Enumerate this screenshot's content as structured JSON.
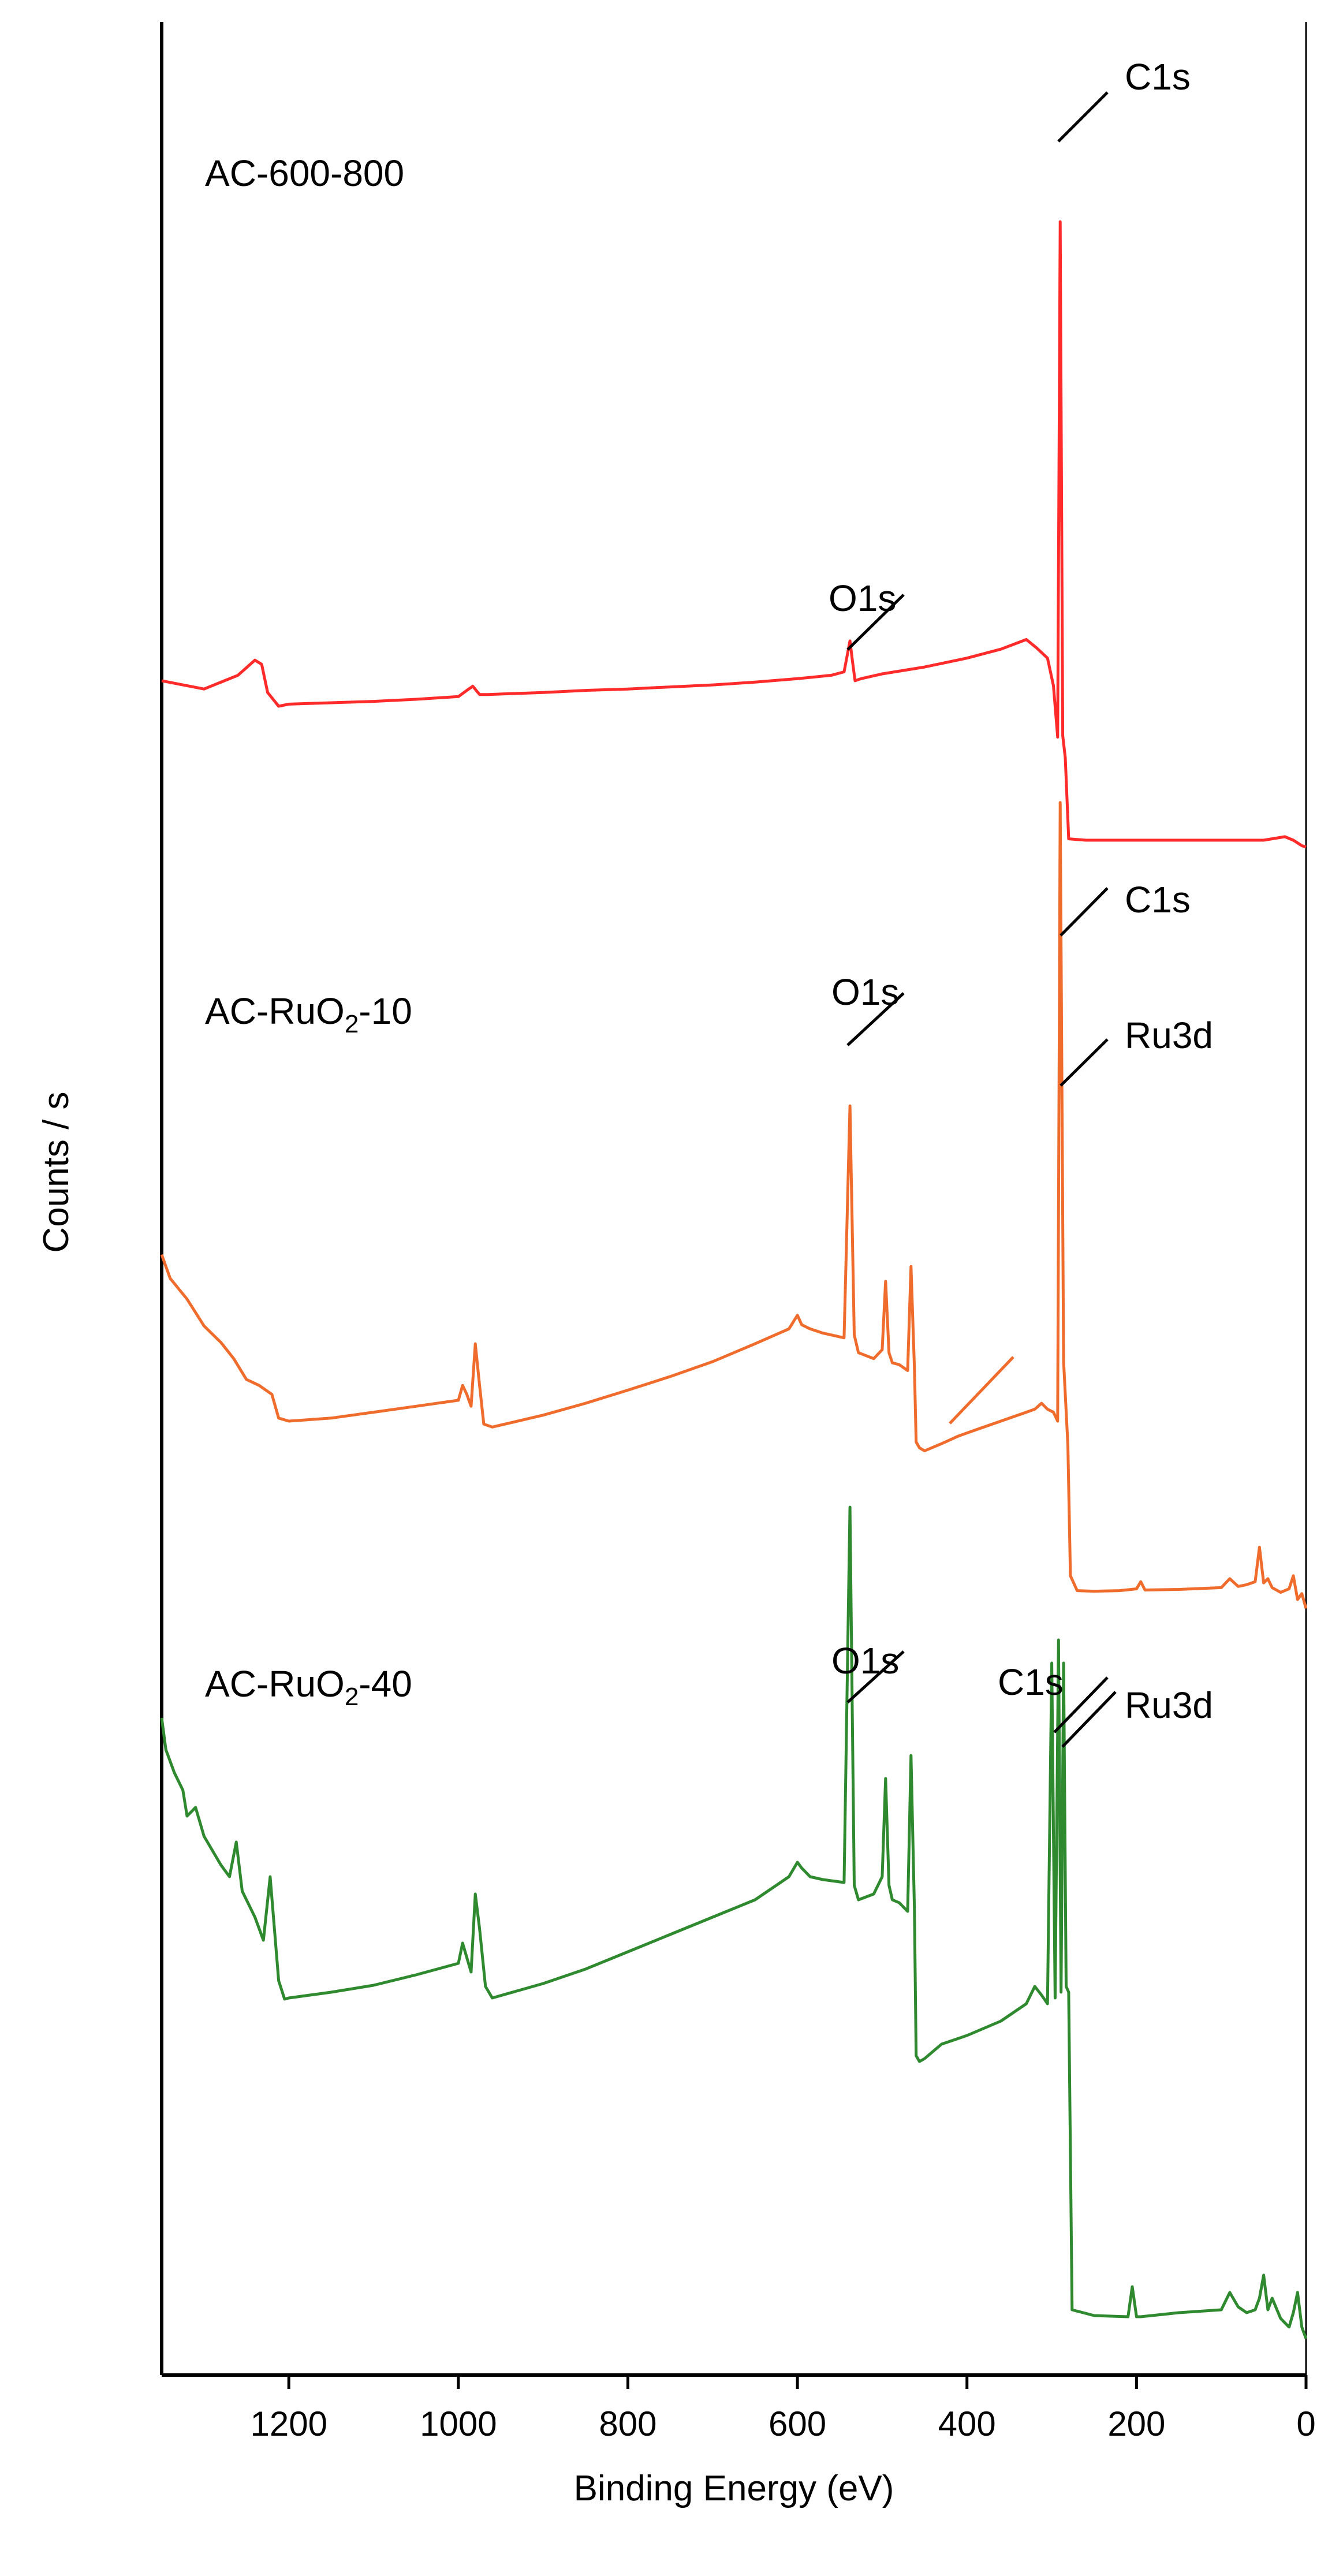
{
  "chart_data": {
    "type": "line",
    "title": "",
    "xlabel": "Binding Energy (eV)",
    "ylabel": "Counts / s",
    "x_reversed": true,
    "xlim": [
      1350,
      0
    ],
    "y_ticks": false,
    "grid": false,
    "legend": "none",
    "x_ticks": [
      "1200",
      "1000",
      "800",
      "600",
      "400",
      "200",
      "0"
    ],
    "x_tick_values": [
      1200,
      1000,
      800,
      600,
      400,
      200,
      0
    ],
    "series": [
      {
        "name": "AC-600-800",
        "name_main": "AC-600-800",
        "name_sub": "",
        "name_tail": "",
        "color": "#ff2a2a",
        "x": [
          1350,
          1300,
          1260,
          1240,
          1232,
          1225,
          1212,
          1200,
          1150,
          1100,
          1050,
          1000,
          990,
          983,
          975,
          965,
          900,
          850,
          800,
          750,
          700,
          650,
          600,
          560,
          545,
          538,
          535,
          532,
          525,
          500,
          450,
          400,
          360,
          330,
          318,
          305,
          298,
          293,
          290,
          287,
          284,
          280,
          260,
          200,
          150,
          100,
          50,
          25,
          15,
          5,
          0
        ],
        "y": [
          232,
          220,
          240,
          262,
          256,
          215,
          195,
          198,
          200,
          202,
          205,
          209,
          218,
          224,
          212,
          212,
          215,
          218,
          220,
          223,
          226,
          230,
          235,
          240,
          245,
          290,
          260,
          232,
          235,
          242,
          252,
          265,
          278,
          292,
          280,
          265,
          225,
          150,
          900,
          152,
          120,
          2,
          0,
          0,
          0,
          0,
          0,
          5,
          0,
          -8,
          -10
        ],
        "annotations": [
          {
            "text": "C1s",
            "x": 288
          },
          {
            "text": "O1s",
            "x": 536
          }
        ]
      },
      {
        "name": "AC-RuO2-10",
        "name_main": "AC-RuO",
        "name_sub": "2",
        "name_tail": "-10",
        "color": "#ef6c2c",
        "x": [
          1350,
          1340,
          1320,
          1300,
          1280,
          1265,
          1250,
          1235,
          1220,
          1212,
          1200,
          1150,
          1100,
          1050,
          1000,
          995,
          990,
          985,
          980,
          975,
          970,
          960,
          900,
          850,
          800,
          750,
          700,
          650,
          610,
          600,
          595,
          585,
          570,
          545,
          538,
          533,
          528,
          510,
          500,
          496,
          492,
          488,
          480,
          470,
          466,
          462,
          460,
          456,
          450,
          430,
          410,
          390,
          360,
          330,
          320,
          312,
          305,
          298,
          293,
          290,
          286,
          281,
          278,
          270,
          250,
          220,
          200,
          195,
          190,
          150,
          100,
          90,
          80,
          70,
          60,
          55,
          50,
          45,
          40,
          30,
          20,
          15,
          10,
          5,
          0
        ],
        "y": [
          580,
          540,
          505,
          460,
          432,
          405,
          370,
          360,
          345,
          305,
          300,
          305,
          315,
          325,
          335,
          360,
          345,
          325,
          430,
          360,
          295,
          290,
          310,
          330,
          352,
          375,
          400,
          430,
          455,
          478,
          462,
          455,
          448,
          440,
          830,
          445,
          415,
          405,
          420,
          535,
          415,
          398,
          395,
          385,
          560,
          390,
          265,
          255,
          250,
          262,
          275,
          285,
          300,
          315,
          320,
          330,
          320,
          315,
          300,
          1340,
          400,
          260,
          40,
          15,
          14,
          15,
          18,
          30,
          16,
          17,
          20,
          35,
          22,
          25,
          30,
          88,
          28,
          35,
          20,
          12,
          18,
          40,
          0,
          10,
          -15
        ],
        "annotations": [
          {
            "text": "C1s",
            "x": 288
          },
          {
            "text": "Ru3d",
            "x": 283
          },
          {
            "text": "O1s",
            "x": 533
          }
        ]
      },
      {
        "name": "AC-RuO2-40",
        "name_main": "AC-RuO",
        "name_sub": "2",
        "name_tail": "-40",
        "color": "#2f8a2f",
        "x": [
          1350,
          1345,
          1335,
          1325,
          1320,
          1310,
          1300,
          1290,
          1280,
          1270,
          1262,
          1255,
          1240,
          1230,
          1222,
          1212,
          1205,
          1200,
          1150,
          1100,
          1050,
          1000,
          995,
          990,
          985,
          980,
          975,
          968,
          960,
          900,
          850,
          800,
          750,
          700,
          650,
          610,
          600,
          595,
          585,
          570,
          545,
          538,
          533,
          528,
          510,
          500,
          496,
          492,
          488,
          480,
          470,
          466,
          462,
          460,
          456,
          450,
          430,
          400,
          360,
          330,
          320,
          312,
          305,
          300,
          296,
          292,
          289,
          286,
          283,
          280,
          276,
          250,
          210,
          205,
          200,
          195,
          150,
          100,
          90,
          80,
          70,
          60,
          55,
          50,
          45,
          40,
          30,
          20,
          15,
          10,
          5,
          0
        ],
        "y": [
          1065,
          1010,
          970,
          940,
          895,
          910,
          860,
          835,
          810,
          790,
          850,
          765,
          720,
          680,
          790,
          610,
          578,
          580,
          590,
          602,
          620,
          640,
          675,
          650,
          625,
          760,
          700,
          600,
          580,
          605,
          630,
          660,
          690,
          720,
          750,
          790,
          815,
          805,
          790,
          785,
          780,
          1430,
          775,
          750,
          760,
          790,
          960,
          775,
          750,
          745,
          730,
          1000,
          735,
          480,
          470,
          475,
          500,
          515,
          540,
          570,
          600,
          585,
          570,
          1160,
          580,
          1200,
          590,
          1160,
          600,
          590,
          40,
          30,
          28,
          80,
          28,
          28,
          35,
          40,
          70,
          45,
          35,
          40,
          60,
          100,
          40,
          60,
          25,
          10,
          35,
          70,
          10,
          -10
        ],
        "annotations": [
          {
            "text": "O1s",
            "x": 533
          },
          {
            "text": "C1s",
            "x": 290
          },
          {
            "text": "Ru3d",
            "x": 284
          }
        ]
      }
    ]
  }
}
